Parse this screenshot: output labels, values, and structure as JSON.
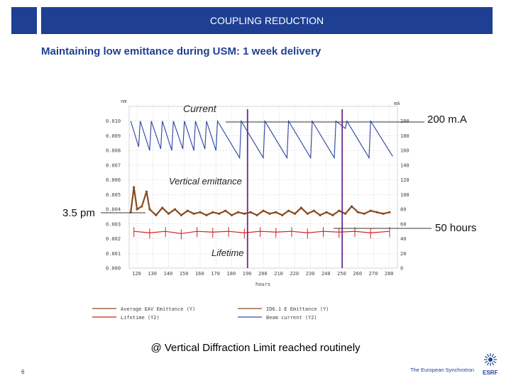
{
  "header": {
    "title": "COUPLING REDUCTION"
  },
  "subtitle": "Maintaining low emittance during USM: 1 week delivery",
  "footer": {
    "page_number": "6",
    "org_text": "The European Synchrotron",
    "org_short": "ESRF"
  },
  "colors": {
    "brand": "#1f3f93",
    "current": "#3a4fa8",
    "emittance": "#8a4a1e",
    "lifetime": "#d42020",
    "marker": "#6a2a8a"
  },
  "chart_data": {
    "type": "line",
    "xlabel": "hours",
    "x_ticks": [
      "120",
      "130",
      "140",
      "150",
      "160",
      "170",
      "180",
      "190",
      "200",
      "210",
      "220",
      "230",
      "240",
      "250",
      "260",
      "270",
      "280"
    ],
    "xlim": [
      115,
      285
    ],
    "left_axis": {
      "unit": "nm",
      "ticks": [
        "0.010",
        "0.009",
        "0.008",
        "0.007",
        "0.006",
        "0.005",
        "0.004",
        "0.003",
        "0.002",
        "0.001",
        "0.000"
      ],
      "ylim": [
        0,
        0.011
      ]
    },
    "right_axis": {
      "unit": "mA",
      "ticks": [
        "200",
        "180",
        "160",
        "140",
        "120",
        "100",
        "80",
        "60",
        "40",
        "20",
        "0"
      ],
      "ylim": [
        0,
        220
      ]
    },
    "series": [
      {
        "name": "Average EAV Emittance",
        "legend_suffix": "(Y)",
        "axis": "left",
        "values": [
          [
            116,
            0.0038
          ],
          [
            118,
            0.0055
          ],
          [
            120,
            0.004
          ],
          [
            123,
            0.0042
          ],
          [
            126,
            0.0052
          ],
          [
            128,
            0.004
          ],
          [
            132,
            0.0036
          ],
          [
            136,
            0.0041
          ],
          [
            140,
            0.0037
          ],
          [
            144,
            0.004
          ],
          [
            148,
            0.0036
          ],
          [
            152,
            0.0039
          ],
          [
            156,
            0.0037
          ],
          [
            160,
            0.0038
          ],
          [
            164,
            0.0036
          ],
          [
            168,
            0.0038
          ],
          [
            172,
            0.0037
          ],
          [
            176,
            0.0039
          ],
          [
            180,
            0.0036
          ],
          [
            184,
            0.0038
          ],
          [
            188,
            0.0037
          ],
          [
            192,
            0.0038
          ],
          [
            196,
            0.0036
          ],
          [
            200,
            0.0039
          ],
          [
            204,
            0.0037
          ],
          [
            208,
            0.0038
          ],
          [
            212,
            0.0036
          ],
          [
            216,
            0.0039
          ],
          [
            220,
            0.0037
          ],
          [
            224,
            0.0041
          ],
          [
            228,
            0.0037
          ],
          [
            232,
            0.0039
          ],
          [
            236,
            0.0036
          ],
          [
            240,
            0.0038
          ],
          [
            244,
            0.0036
          ],
          [
            248,
            0.0039
          ],
          [
            252,
            0.0037
          ],
          [
            256,
            0.0042
          ],
          [
            260,
            0.0038
          ],
          [
            264,
            0.0037
          ],
          [
            268,
            0.0039
          ],
          [
            272,
            0.0038
          ],
          [
            276,
            0.0037
          ],
          [
            280,
            0.0038
          ]
        ]
      },
      {
        "name": "Lifetime",
        "legend_suffix": "(Y2)",
        "axis": "right",
        "values": [
          [
            118,
            50
          ],
          [
            128,
            48
          ],
          [
            138,
            50
          ],
          [
            148,
            47
          ],
          [
            158,
            50
          ],
          [
            168,
            49
          ],
          [
            178,
            50
          ],
          [
            188,
            48
          ],
          [
            198,
            50
          ],
          [
            208,
            49
          ],
          [
            218,
            50
          ],
          [
            228,
            48
          ],
          [
            238,
            50
          ],
          [
            248,
            49
          ],
          [
            258,
            50
          ],
          [
            268,
            48
          ],
          [
            280,
            50
          ]
        ]
      },
      {
        "name": "ID6.1 E Emittance",
        "legend_suffix": "(Y)",
        "axis": "left",
        "values": []
      },
      {
        "name": "Beam current",
        "legend_suffix": "(Y2)",
        "axis": "right",
        "values": [
          [
            116,
            200
          ],
          [
            121,
            165
          ],
          [
            122,
            200
          ],
          [
            128,
            160
          ],
          [
            129,
            200
          ],
          [
            135,
            162
          ],
          [
            136,
            200
          ],
          [
            142,
            160
          ],
          [
            143,
            200
          ],
          [
            149,
            162
          ],
          [
            150,
            200
          ],
          [
            156,
            160
          ],
          [
            157,
            200
          ],
          [
            163,
            162
          ],
          [
            164,
            200
          ],
          [
            170,
            160
          ],
          [
            171,
            200
          ],
          [
            185,
            150
          ],
          [
            186,
            200
          ],
          [
            200,
            150
          ],
          [
            201,
            200
          ],
          [
            215,
            150
          ],
          [
            216,
            200
          ],
          [
            230,
            150
          ],
          [
            231,
            200
          ],
          [
            245,
            150
          ],
          [
            246,
            200
          ],
          [
            252,
            190
          ],
          [
            253,
            200
          ],
          [
            267,
            150
          ],
          [
            268,
            200
          ],
          [
            282,
            152
          ]
        ]
      }
    ],
    "vertical_markers": [
      190,
      250
    ],
    "annotations": {
      "current": "Current",
      "current_value": "200 m.A",
      "emittance": "Vertical emittance",
      "emittance_value": "3.5 pm",
      "lifetime": "Lifetime",
      "lifetime_value": "50 hours"
    },
    "legend_placement": "bottom"
  },
  "bottom_note": "@ Vertical Diffraction Limit reached routinely"
}
